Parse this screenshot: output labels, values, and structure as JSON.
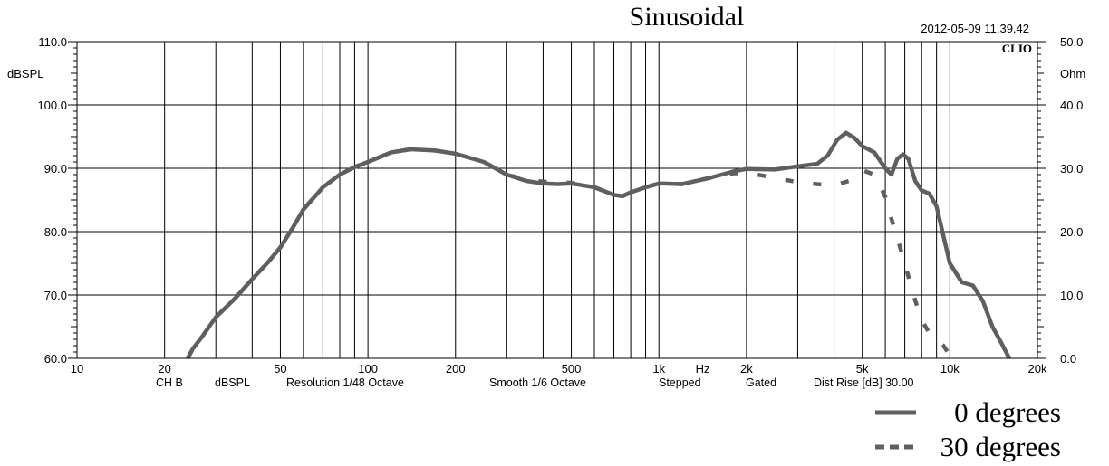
{
  "chart_data": {
    "type": "line",
    "title": "Sinusoidal",
    "timestamp": "2012-05-09 11.39.42",
    "brand": "CLIO",
    "x_scale": "log",
    "xlim": [
      10,
      20000
    ],
    "ylim": [
      60,
      110
    ],
    "y2lim": [
      0,
      50
    ],
    "ylabel": "dBSPL",
    "y2label": "Ohm",
    "xlabel": "Hz",
    "x_tick_labels": [
      {
        "v": 10,
        "label": "10"
      },
      {
        "v": 20,
        "label": "20"
      },
      {
        "v": 50,
        "label": "50"
      },
      {
        "v": 100,
        "label": "100"
      },
      {
        "v": 200,
        "label": "200"
      },
      {
        "v": 500,
        "label": "500"
      },
      {
        "v": 1000,
        "label": "1k"
      },
      {
        "v": 2000,
        "label": "2k"
      },
      {
        "v": 5000,
        "label": "5k"
      },
      {
        "v": 10000,
        "label": "10k"
      },
      {
        "v": 20000,
        "label": "20k"
      }
    ],
    "y_tick_labels": [
      "110.0",
      "100.0",
      "90.0",
      "80.0",
      "70.0",
      "60.0"
    ],
    "y2_tick_labels": [
      "50.0",
      "40.0",
      "30.0",
      "20.0",
      "10.0",
      "0.0"
    ],
    "footer": [
      "CH B",
      "dBSPL",
      "Resolution 1/48 Octave",
      "Smooth 1/6 Octave",
      "Stepped",
      "Gated",
      "Dist Rise [dB] 30.00"
    ],
    "grid": true,
    "legend_position": "bottom-right",
    "series": [
      {
        "name": "0 degrees",
        "color": "#5f5f5f",
        "style": "solid",
        "points": [
          [
            24,
            60.0
          ],
          [
            25,
            61.5
          ],
          [
            27,
            63.5
          ],
          [
            30,
            66.5
          ],
          [
            35,
            69.5
          ],
          [
            40,
            72.5
          ],
          [
            45,
            75.0
          ],
          [
            50,
            77.5
          ],
          [
            55,
            80.5
          ],
          [
            60,
            83.5
          ],
          [
            70,
            87.0
          ],
          [
            80,
            89.0
          ],
          [
            90,
            90.2
          ],
          [
            100,
            91.0
          ],
          [
            120,
            92.5
          ],
          [
            140,
            93.0
          ],
          [
            170,
            92.8
          ],
          [
            200,
            92.3
          ],
          [
            250,
            91.0
          ],
          [
            300,
            89.0
          ],
          [
            350,
            88.0
          ],
          [
            400,
            87.6
          ],
          [
            450,
            87.5
          ],
          [
            500,
            87.6
          ],
          [
            600,
            87.0
          ],
          [
            700,
            85.8
          ],
          [
            750,
            85.6
          ],
          [
            800,
            86.2
          ],
          [
            900,
            87.0
          ],
          [
            1000,
            87.6
          ],
          [
            1200,
            87.5
          ],
          [
            1500,
            88.5
          ],
          [
            1800,
            89.5
          ],
          [
            2000,
            89.9
          ],
          [
            2500,
            89.8
          ],
          [
            3000,
            90.3
          ],
          [
            3500,
            90.7
          ],
          [
            3800,
            92.0
          ],
          [
            4100,
            94.5
          ],
          [
            4400,
            95.6
          ],
          [
            4700,
            94.8
          ],
          [
            5000,
            93.5
          ],
          [
            5500,
            92.5
          ],
          [
            6000,
            90.0
          ],
          [
            6300,
            89.0
          ],
          [
            6600,
            91.5
          ],
          [
            6900,
            92.2
          ],
          [
            7200,
            91.5
          ],
          [
            7600,
            88.0
          ],
          [
            8000,
            86.5
          ],
          [
            8500,
            86.0
          ],
          [
            9000,
            84.0
          ],
          [
            10000,
            75.0
          ],
          [
            11000,
            72.0
          ],
          [
            12000,
            71.5
          ],
          [
            13000,
            69.0
          ],
          [
            14000,
            65.0
          ],
          [
            15000,
            62.5
          ],
          [
            16000,
            60.0
          ]
        ]
      },
      {
        "name": "30 degrees",
        "color": "#5f5f5f",
        "style": "dashed",
        "points": [
          [
            24,
            60.0
          ],
          [
            25,
            61.5
          ],
          [
            27,
            63.5
          ],
          [
            30,
            66.5
          ],
          [
            35,
            69.5
          ],
          [
            40,
            72.5
          ],
          [
            45,
            75.0
          ],
          [
            50,
            77.5
          ],
          [
            55,
            80.5
          ],
          [
            60,
            83.5
          ],
          [
            70,
            87.0
          ],
          [
            80,
            89.0
          ],
          [
            90,
            90.2
          ],
          [
            100,
            91.0
          ],
          [
            120,
            92.5
          ],
          [
            140,
            93.0
          ],
          [
            170,
            92.8
          ],
          [
            200,
            92.3
          ],
          [
            250,
            91.0
          ],
          [
            300,
            89.0
          ],
          [
            350,
            88.2
          ],
          [
            400,
            87.9
          ],
          [
            450,
            87.8
          ],
          [
            500,
            87.7
          ],
          [
            600,
            87.0
          ],
          [
            700,
            85.8
          ],
          [
            750,
            85.6
          ],
          [
            800,
            86.2
          ],
          [
            900,
            87.0
          ],
          [
            1000,
            87.6
          ],
          [
            1200,
            87.5
          ],
          [
            1500,
            88.5
          ],
          [
            1800,
            89.2
          ],
          [
            2000,
            89.3
          ],
          [
            2500,
            88.5
          ],
          [
            3000,
            87.8
          ],
          [
            3500,
            87.5
          ],
          [
            4000,
            87.3
          ],
          [
            4500,
            88.0
          ],
          [
            5000,
            89.7
          ],
          [
            5500,
            89.0
          ],
          [
            6000,
            85.5
          ],
          [
            6300,
            82.0
          ],
          [
            6600,
            79.0
          ],
          [
            7000,
            75.0
          ],
          [
            7500,
            70.0
          ],
          [
            8000,
            66.0
          ],
          [
            8500,
            64.0
          ],
          [
            9000,
            63.0
          ],
          [
            9500,
            62.0
          ],
          [
            10000,
            60.5
          ]
        ]
      }
    ]
  }
}
